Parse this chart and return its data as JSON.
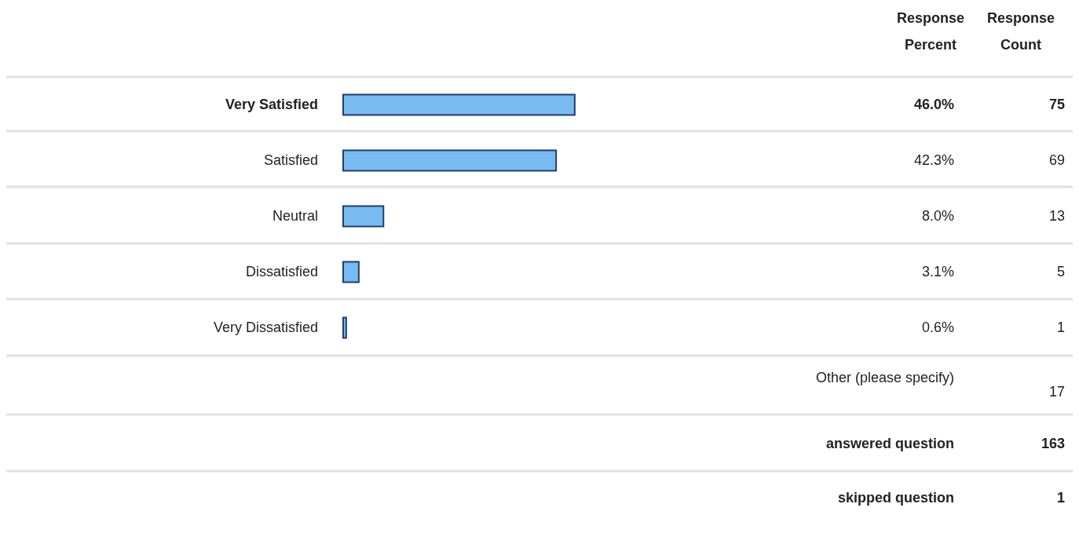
{
  "chart_data": {
    "type": "bar",
    "orientation": "horizontal",
    "categories": [
      "Very Satisfied",
      "Satisfied",
      "Neutral",
      "Dissatisfied",
      "Very Dissatisfied"
    ],
    "values": [
      46.0,
      42.3,
      8.0,
      3.1,
      0.6
    ],
    "value_labels": [
      "46.0%",
      "42.3%",
      "8.0%",
      "3.1%",
      "0.6%"
    ],
    "color": "#78bbf0",
    "annotations": [
      "Response Percent",
      "Response Count",
      "75",
      "69",
      "13",
      "5",
      "1",
      "Other (please specify)",
      "17",
      "answered question",
      "163",
      "skipped question",
      "1"
    ]
  }
}
